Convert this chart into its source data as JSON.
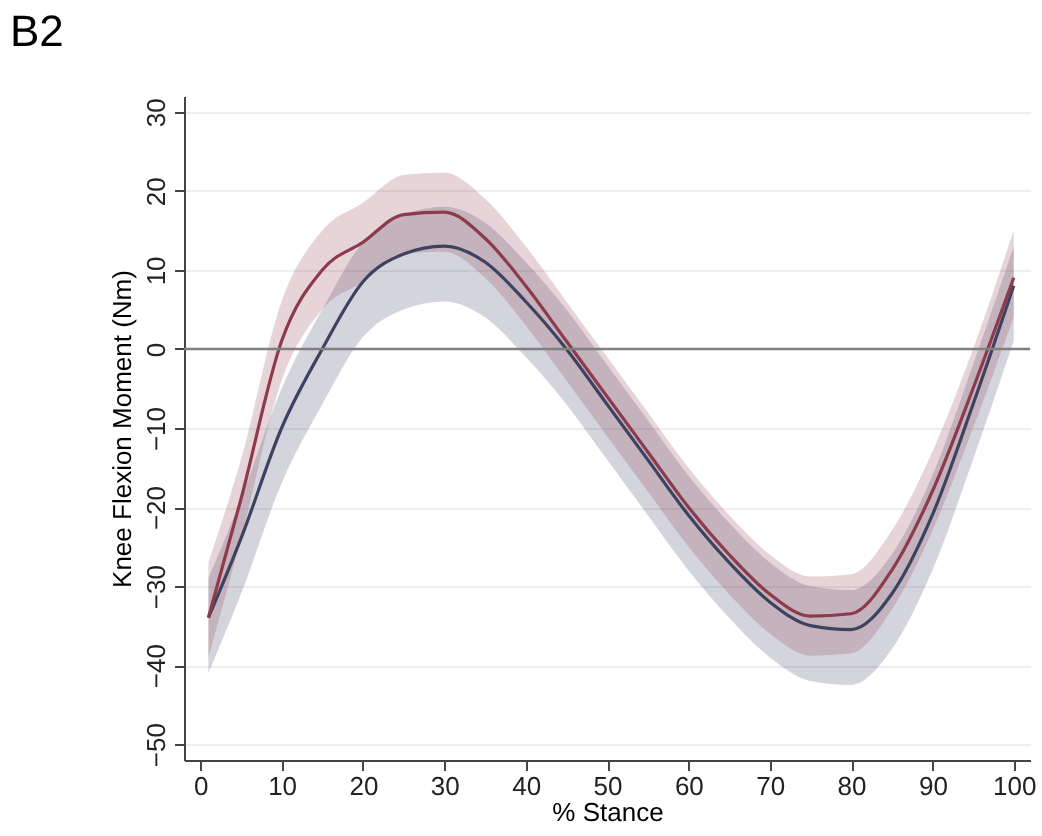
{
  "chart_data": {
    "type": "line",
    "title": "B2",
    "xlabel": "% Stance",
    "ylabel": "Knee Flexion Moment (Nm)",
    "x": [
      1,
      5,
      10,
      15,
      20,
      25,
      30,
      35,
      40,
      45,
      50,
      55,
      60,
      65,
      70,
      75,
      80,
      85,
      90,
      95,
      100
    ],
    "series": [
      {
        "color": "#3d4260",
        "values": [
          -34,
          -24,
          -10,
          0,
          8.5,
          12,
          13,
          11,
          6,
          0,
          -7,
          -14,
          -21,
          -27,
          -32,
          -35,
          -35.5,
          -31,
          -21,
          -7,
          8
        ],
        "lower": [
          -41,
          -31,
          -17,
          -7,
          1.5,
          5,
          6,
          4,
          -1,
          -7,
          -14,
          -21,
          -28,
          -34,
          -39,
          -42,
          -42.5,
          -38,
          -28,
          -14,
          1
        ],
        "upper": [
          -29,
          -19,
          -5,
          5,
          13.5,
          17,
          18,
          16,
          11,
          5,
          -2,
          -9,
          -16,
          -22,
          -27,
          -30,
          -30.5,
          -26,
          -16,
          -2,
          13
        ]
      },
      {
        "color": "#8c3a4c",
        "values": [
          -34,
          -19,
          1,
          10,
          13.5,
          17,
          17.3,
          14,
          8,
          1,
          -6,
          -13,
          -20,
          -26,
          -31,
          -33.8,
          -33.5,
          -28,
          -18,
          -5,
          9
        ],
        "lower": [
          -39,
          -24,
          -4,
          5,
          8.5,
          12,
          12.3,
          9,
          3,
          -4,
          -11,
          -18,
          -25,
          -31,
          -36,
          -38.8,
          -38.5,
          -33,
          -23,
          -10,
          4
        ],
        "upper": [
          -27,
          -14,
          6,
          15,
          18.5,
          22,
          22.3,
          19,
          13,
          6,
          -1,
          -8,
          -15,
          -21,
          -26,
          -28.8,
          -28.5,
          -23,
          -13,
          0,
          15
        ]
      }
    ],
    "xlim": [
      -2,
      102
    ],
    "xticks": [
      0,
      10,
      20,
      30,
      40,
      50,
      60,
      70,
      80,
      90,
      100
    ],
    "ylim": [
      -52,
      32
    ],
    "yticks": [
      -50,
      -40,
      -30,
      -20,
      -10,
      0,
      10,
      20,
      30
    ],
    "grid": "y",
    "marker": "none",
    "line_style": "solid",
    "ref_lines": [
      {
        "axis": "y",
        "value": 0,
        "color": "#808080"
      }
    ]
  }
}
